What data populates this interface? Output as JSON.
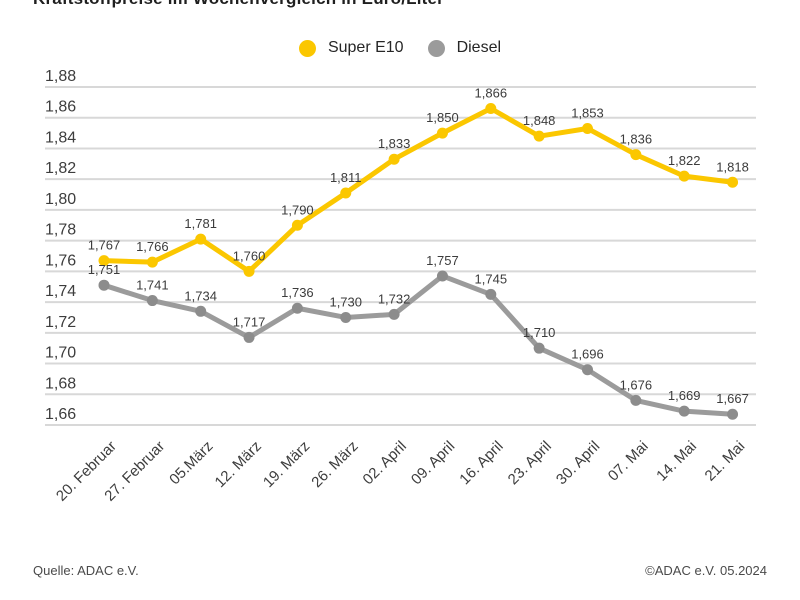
{
  "title": "Kraftstoffpreise im Wochenvergleich in Euro/Liter",
  "footer": {
    "source_left": "Quelle: ADAC e.V.",
    "source_right": "©ADAC e.V. 05.2024"
  },
  "chart_data": {
    "type": "line",
    "title": "Kraftstoffpreise im Wochenvergleich in Euro/Liter",
    "categories": [
      "20. Februar",
      "27. Februar",
      "05.März",
      "12. März",
      "19. März",
      "26. März",
      "02. April",
      "09. April",
      "16. April",
      "23. April",
      "30. April",
      "07. Mai",
      "14. Mai",
      "21. Mai"
    ],
    "series": [
      {
        "name": "Super E10",
        "color": "#fbc700",
        "marker_color": "#fbc700",
        "values": [
          1.767,
          1.766,
          1.781,
          1.76,
          1.79,
          1.811,
          1.833,
          1.85,
          1.866,
          1.848,
          1.853,
          1.836,
          1.822,
          1.818
        ],
        "labels": [
          "1,767",
          "1,766",
          "1,781",
          "1,760",
          "1,790",
          "1,811",
          "1,833",
          "1,850",
          "1,866",
          "1,848",
          "1,853",
          "1,836",
          "1,822",
          "1,818"
        ]
      },
      {
        "name": "Diesel",
        "color": "#9b9b9b",
        "marker_color": "#8c8c8c",
        "values": [
          1.751,
          1.741,
          1.734,
          1.717,
          1.736,
          1.73,
          1.732,
          1.757,
          1.745,
          1.71,
          1.696,
          1.676,
          1.669,
          1.667
        ],
        "labels": [
          "1,751",
          "1,741",
          "1,734",
          "1,717",
          "1,736",
          "1,730",
          "1,732",
          "1,757",
          "1,745",
          "1,710",
          "1,696",
          "1,676",
          "1,669",
          "1,667"
        ]
      }
    ],
    "xlabel": "",
    "ylabel": "",
    "ylim": [
      1.66,
      1.88
    ],
    "ytick_step": 0.02,
    "ytick_labels": [
      "1,88",
      "1,86",
      "1,84",
      "1,82",
      "1,80",
      "1,78",
      "1,76",
      "1,74",
      "1,72",
      "1,70",
      "1,68",
      "1,66"
    ],
    "grid": true,
    "legend_position": "top",
    "grid_color": "#d8d8d8",
    "axis_text_color": "#3d3d3d",
    "label_text_color": "#3c3c3c"
  }
}
